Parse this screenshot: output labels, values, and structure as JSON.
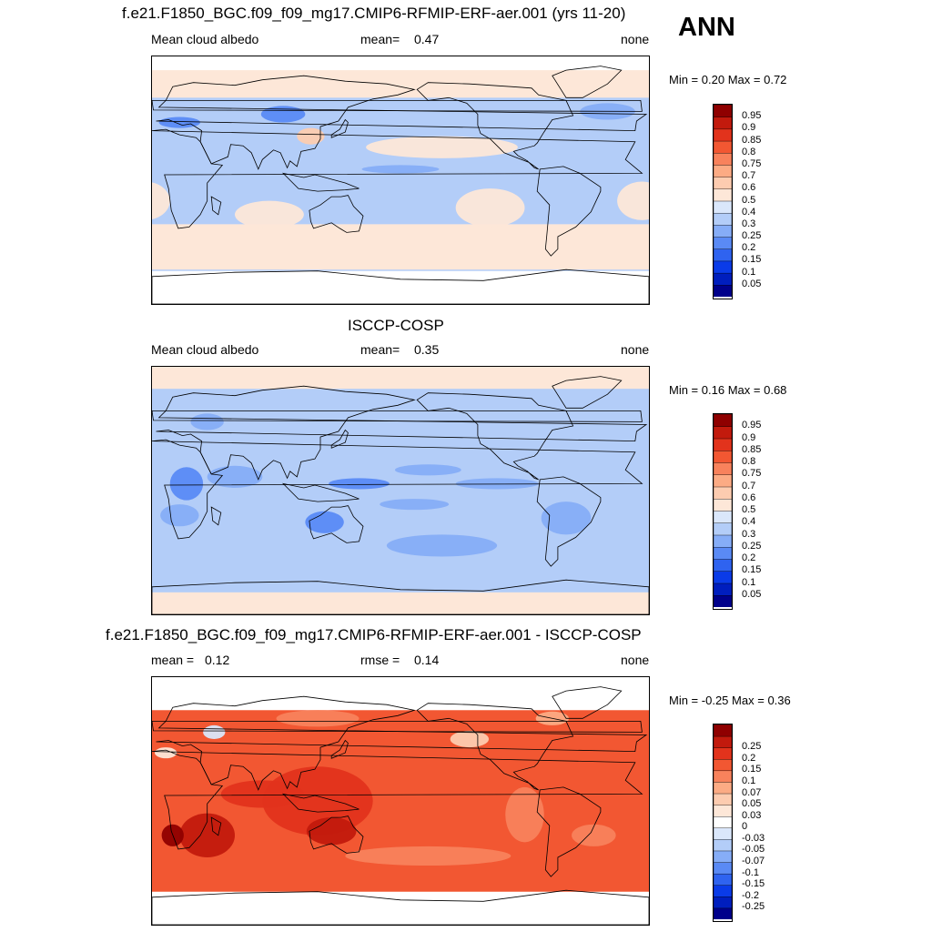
{
  "annual_label": "ANN",
  "colors": {
    "seq_palette": [
      "#00008b",
      "#001ebe",
      "#0a3be8",
      "#2f63f0",
      "#5a8af5",
      "#86adf7",
      "#b3cdf8",
      "#dae7fb",
      "#fde7d8",
      "#fdccb0",
      "#fcab84",
      "#f8825c",
      "#f25732",
      "#e2331c",
      "#c21a0d",
      "#8f0000"
    ],
    "diff_palette": [
      "#00008b",
      "#001ebe",
      "#0a3be8",
      "#2f63f0",
      "#5a8af5",
      "#86adf7",
      "#b3cdf8",
      "#dae7fb",
      "#ffffff",
      "#fde7d8",
      "#fdccb0",
      "#fcab84",
      "#f8825c",
      "#f25732",
      "#e2331c",
      "#c21a0d",
      "#8f0000"
    ],
    "land_outline": "#000000"
  },
  "chart_data": [
    {
      "type": "heatmap",
      "title": "f.e21.F1850_BGC.f09_f09_mg17.CMIP6-RFMIP-ERF-aer.001 (yrs 11-20)",
      "left_label": "Mean cloud albedo",
      "stat_label": "mean=",
      "stat_value": "0.47",
      "right_label": "none",
      "min_label": "Min =",
      "min_value": "0.20",
      "max_label": "Max =",
      "max_value": "0.72",
      "colorbar_levels": [
        "0.05",
        "0.1",
        "0.15",
        "0.2",
        "0.25",
        "0.3",
        "0.4",
        "0.5",
        "0.6",
        "0.7",
        "0.75",
        "0.8",
        "0.85",
        "0.9",
        "0.95"
      ],
      "field_style": "model",
      "lat_range": [
        -90,
        90
      ],
      "lon_range": [
        0,
        360
      ]
    },
    {
      "type": "heatmap",
      "title": "ISCCP-COSP",
      "left_label": "Mean cloud albedo",
      "stat_label": "mean=",
      "stat_value": "0.35",
      "right_label": "none",
      "min_label": "Min =",
      "min_value": "0.16",
      "max_label": "Max =",
      "max_value": "0.68",
      "colorbar_levels": [
        "0.05",
        "0.1",
        "0.15",
        "0.2",
        "0.25",
        "0.3",
        "0.4",
        "0.5",
        "0.6",
        "0.7",
        "0.75",
        "0.8",
        "0.85",
        "0.9",
        "0.95"
      ],
      "field_style": "obs",
      "lat_range": [
        -90,
        90
      ],
      "lon_range": [
        0,
        360
      ]
    },
    {
      "type": "heatmap",
      "title": "f.e21.F1850_BGC.f09_f09_mg17.CMIP6-RFMIP-ERF-aer.001 - ISCCP-COSP",
      "left_label": "mean =",
      "left_value": "0.12",
      "stat_label": "rmse =",
      "stat_value": "0.14",
      "right_label": "none",
      "min_label": "Min =",
      "min_value": "-0.25",
      "max_label": "Max =",
      "max_value": "0.36",
      "colorbar_levels": [
        "-0.25",
        "-0.2",
        "-0.15",
        "-0.1",
        "-0.07",
        "-0.05",
        "-0.03",
        "0",
        "0.03",
        "0.05",
        "0.07",
        "0.1",
        "0.15",
        "0.2",
        "0.25"
      ],
      "field_style": "diff",
      "lat_range": [
        -90,
        90
      ],
      "lon_range": [
        0,
        360
      ]
    }
  ]
}
